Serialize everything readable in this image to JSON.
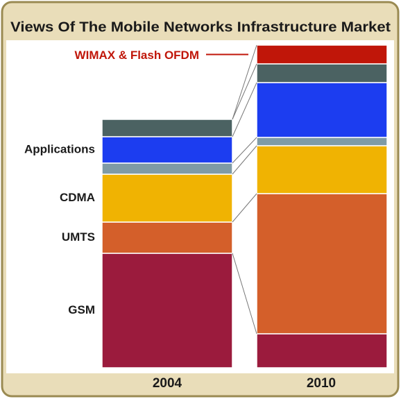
{
  "chart_data": {
    "type": "stacked-bar",
    "title": "Views Of The Mobile Networks Infrastructure Market",
    "categories": [
      "2004",
      "2010"
    ],
    "series": [
      {
        "name": "GSM",
        "color": "#9b1b3d",
        "values": [
          165,
          49
        ]
      },
      {
        "name": "UMTS",
        "color": "#d45f2a",
        "values": [
          45,
          202
        ]
      },
      {
        "name": "CDMA",
        "color": "#f0b302",
        "values": [
          69,
          69
        ]
      },
      {
        "name": null,
        "color": "#7f9ba6",
        "values": [
          16,
          12
        ]
      },
      {
        "name": "Applications",
        "color": "#1c3df0",
        "values": [
          38,
          79
        ]
      },
      {
        "name": null,
        "color": "#4b6262",
        "values": [
          25,
          27
        ]
      },
      {
        "name": "WIMAX & Flash OFDM",
        "color": "#c01609",
        "values": [
          0,
          27
        ]
      }
    ]
  }
}
